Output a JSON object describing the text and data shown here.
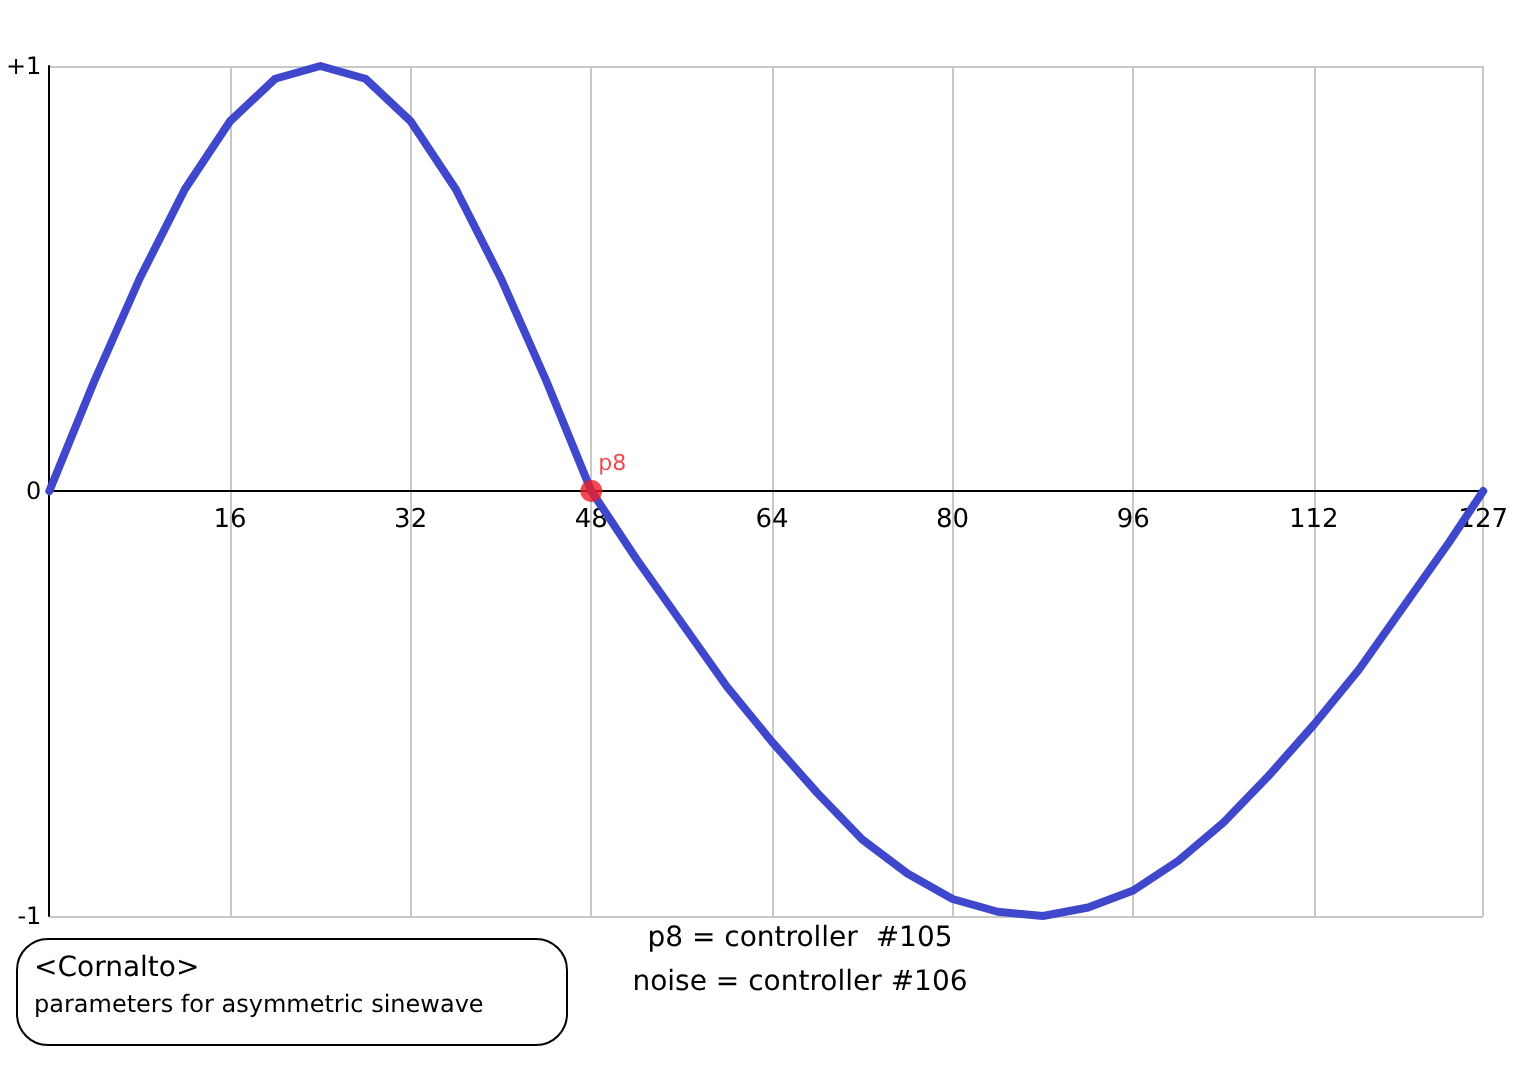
{
  "chart_data": {
    "type": "line",
    "xlim": [
      0,
      127
    ],
    "xticks": [
      16,
      32,
      48,
      64,
      80,
      96,
      112,
      127
    ],
    "ylim": [
      -1,
      1
    ],
    "yticks": [
      -1,
      0,
      {
        "value": 1,
        "label": "+1"
      }
    ],
    "grid": true,
    "marker": "none",
    "line_style": "solid",
    "series": [
      {
        "color": "#3f48cc",
        "x": [
          0,
          4,
          8,
          12,
          16,
          20,
          24,
          28,
          32,
          36,
          40,
          44,
          48,
          52,
          56,
          60,
          64,
          68,
          72,
          76,
          80,
          84,
          88,
          92,
          96,
          100,
          104,
          108,
          112,
          116,
          120,
          124,
          127
        ],
        "values": [
          0,
          0.26,
          0.5,
          0.71,
          0.87,
          0.97,
          1,
          0.97,
          0.87,
          0.71,
          0.5,
          0.26,
          0,
          -0.16,
          -0.31,
          -0.46,
          -0.59,
          -0.71,
          -0.82,
          -0.9,
          -0.96,
          -0.99,
          -1,
          -0.98,
          -0.94,
          -0.87,
          -0.78,
          -0.67,
          -0.55,
          -0.42,
          -0.27,
          -0.12,
          0
        ]
      },
      {
        "name": "p8",
        "type": "scatter",
        "marker": "circle",
        "color": "#ed1c24",
        "x": [
          48
        ],
        "values": [
          0
        ]
      }
    ],
    "annotations": [
      "<Cornalto>",
      "parameters for asymmetric sinewave",
      "p8 = controller  #105",
      "noise = controller #106"
    ]
  }
}
